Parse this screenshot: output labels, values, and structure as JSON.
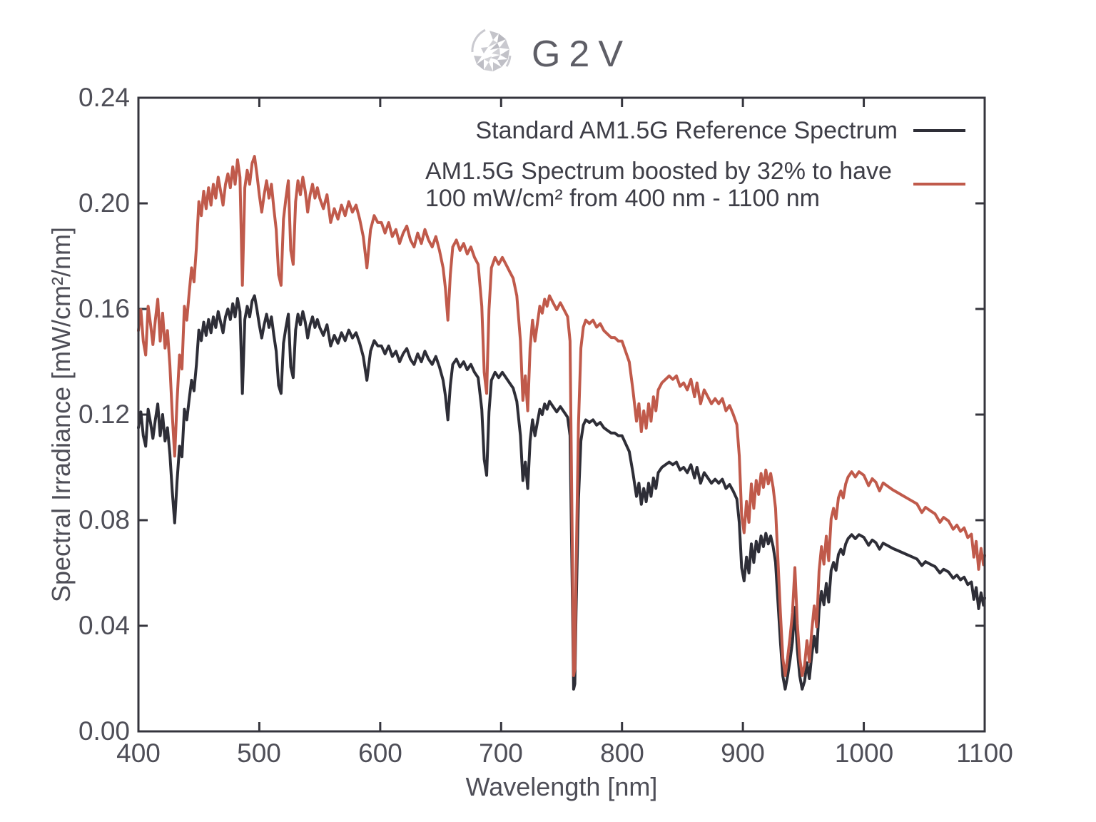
{
  "logo": {
    "text": "G2V"
  },
  "colors": {
    "reference_curve": "#2e2e37",
    "boosted_curve": "#c05a4b",
    "axis": "#35353d",
    "tick_label": "#4e4e57",
    "legend_text": "#3e3e47",
    "logo_text": "#5e5e66",
    "logo_icon": "#c4c4ca",
    "background": "#ffffff"
  },
  "legend": {
    "entries": [
      {
        "label": "Standard AM1.5G Reference Spectrum"
      },
      {
        "label_line1": "AM1.5G Spectrum boosted by 32% to have",
        "label_line2": "100 mW/cm² from 400 nm - 1100 nm"
      }
    ]
  },
  "chart_data": {
    "type": "line",
    "title": "",
    "xlabel": "Wavelength [nm]",
    "ylabel": "Spectral Irradiance [mW/cm²/nm]",
    "xlim": [
      400,
      1100
    ],
    "ylim": [
      0,
      0.24
    ],
    "x_ticks": [
      400,
      500,
      600,
      700,
      800,
      900,
      1000,
      1100
    ],
    "x_tick_labels": [
      "400",
      "500",
      "600",
      "700",
      "800",
      "900",
      "1000",
      "1100"
    ],
    "y_ticks": [
      0.24,
      0.2,
      0.16,
      0.12,
      0.08,
      0.04,
      0.0
    ],
    "y_tick_labels": [
      "0.24",
      "0.20",
      "0.16",
      "0.12",
      "0.08",
      "0.04",
      "0.00"
    ],
    "grid": false,
    "legend_position": "upper right",
    "series": [
      {
        "name": "Standard AM1.5G Reference Spectrum",
        "color": "#2e2e37",
        "source": "points"
      },
      {
        "name": "AM1.5G Spectrum boosted by 32% to have 100 mW/cm² from 400 nm - 1100 nm",
        "color": "#c05a4b",
        "scale": 1.32,
        "derived_from": "reference series multiplied by 1.32"
      }
    ],
    "points": [
      [
        400,
        0.115
      ],
      [
        402,
        0.121
      ],
      [
        404,
        0.112
      ],
      [
        406,
        0.108
      ],
      [
        408,
        0.122
      ],
      [
        410,
        0.117
      ],
      [
        412,
        0.111
      ],
      [
        414,
        0.118
      ],
      [
        416,
        0.124
      ],
      [
        418,
        0.112
      ],
      [
        420,
        0.12
      ],
      [
        422,
        0.11
      ],
      [
        424,
        0.115
      ],
      [
        426,
        0.105
      ],
      [
        428,
        0.091
      ],
      [
        430,
        0.079
      ],
      [
        432,
        0.095
      ],
      [
        434,
        0.108
      ],
      [
        436,
        0.104
      ],
      [
        438,
        0.122
      ],
      [
        440,
        0.118
      ],
      [
        442,
        0.126
      ],
      [
        444,
        0.133
      ],
      [
        446,
        0.129
      ],
      [
        448,
        0.139
      ],
      [
        450,
        0.152
      ],
      [
        452,
        0.148
      ],
      [
        454,
        0.155
      ],
      [
        456,
        0.15
      ],
      [
        458,
        0.156
      ],
      [
        460,
        0.151
      ],
      [
        462,
        0.157
      ],
      [
        464,
        0.153
      ],
      [
        466,
        0.159
      ],
      [
        468,
        0.155
      ],
      [
        470,
        0.151
      ],
      [
        472,
        0.157
      ],
      [
        474,
        0.16
      ],
      [
        476,
        0.156
      ],
      [
        478,
        0.162
      ],
      [
        480,
        0.157
      ],
      [
        482,
        0.164
      ],
      [
        484,
        0.159
      ],
      [
        486,
        0.128
      ],
      [
        488,
        0.156
      ],
      [
        490,
        0.161
      ],
      [
        492,
        0.157
      ],
      [
        494,
        0.163
      ],
      [
        496,
        0.165
      ],
      [
        498,
        0.16
      ],
      [
        500,
        0.154
      ],
      [
        502,
        0.149
      ],
      [
        504,
        0.154
      ],
      [
        506,
        0.158
      ],
      [
        508,
        0.153
      ],
      [
        510,
        0.157
      ],
      [
        512,
        0.15
      ],
      [
        514,
        0.144
      ],
      [
        516,
        0.131
      ],
      [
        518,
        0.128
      ],
      [
        520,
        0.147
      ],
      [
        522,
        0.153
      ],
      [
        524,
        0.158
      ],
      [
        526,
        0.138
      ],
      [
        528,
        0.134
      ],
      [
        530,
        0.152
      ],
      [
        532,
        0.158
      ],
      [
        534,
        0.154
      ],
      [
        536,
        0.159
      ],
      [
        538,
        0.155
      ],
      [
        540,
        0.149
      ],
      [
        542,
        0.154
      ],
      [
        544,
        0.157
      ],
      [
        546,
        0.153
      ],
      [
        548,
        0.156
      ],
      [
        550,
        0.153
      ],
      [
        553,
        0.15
      ],
      [
        556,
        0.154
      ],
      [
        559,
        0.146
      ],
      [
        562,
        0.15
      ],
      [
        565,
        0.147
      ],
      [
        568,
        0.151
      ],
      [
        571,
        0.148
      ],
      [
        574,
        0.152
      ],
      [
        577,
        0.149
      ],
      [
        580,
        0.151
      ],
      [
        583,
        0.147
      ],
      [
        586,
        0.142
      ],
      [
        589,
        0.133
      ],
      [
        592,
        0.144
      ],
      [
        595,
        0.148
      ],
      [
        598,
        0.146
      ],
      [
        601,
        0.146
      ],
      [
        604,
        0.143
      ],
      [
        607,
        0.146
      ],
      [
        610,
        0.142
      ],
      [
        613,
        0.144
      ],
      [
        616,
        0.14
      ],
      [
        619,
        0.143
      ],
      [
        622,
        0.145
      ],
      [
        625,
        0.141
      ],
      [
        628,
        0.139
      ],
      [
        631,
        0.143
      ],
      [
        634,
        0.14
      ],
      [
        637,
        0.144
      ],
      [
        640,
        0.141
      ],
      [
        643,
        0.139
      ],
      [
        646,
        0.142
      ],
      [
        649,
        0.138
      ],
      [
        652,
        0.133
      ],
      [
        654,
        0.127
      ],
      [
        656,
        0.118
      ],
      [
        658,
        0.131
      ],
      [
        660,
        0.139
      ],
      [
        663,
        0.141
      ],
      [
        666,
        0.138
      ],
      [
        669,
        0.14
      ],
      [
        672,
        0.137
      ],
      [
        675,
        0.139
      ],
      [
        678,
        0.136
      ],
      [
        681,
        0.134
      ],
      [
        684,
        0.122
      ],
      [
        686,
        0.103
      ],
      [
        688,
        0.097
      ],
      [
        690,
        0.121
      ],
      [
        692,
        0.133
      ],
      [
        695,
        0.136
      ],
      [
        698,
        0.134
      ],
      [
        701,
        0.136
      ],
      [
        704,
        0.134
      ],
      [
        707,
        0.132
      ],
      [
        710,
        0.13
      ],
      [
        713,
        0.125
      ],
      [
        716,
        0.112
      ],
      [
        718,
        0.095
      ],
      [
        720,
        0.102
      ],
      [
        722,
        0.092
      ],
      [
        724,
        0.11
      ],
      [
        726,
        0.118
      ],
      [
        728,
        0.112
      ],
      [
        730,
        0.117
      ],
      [
        732,
        0.122
      ],
      [
        734,
        0.12
      ],
      [
        736,
        0.124
      ],
      [
        738,
        0.122
      ],
      [
        740,
        0.125
      ],
      [
        743,
        0.123
      ],
      [
        746,
        0.121
      ],
      [
        749,
        0.123
      ],
      [
        752,
        0.121
      ],
      [
        755,
        0.119
      ],
      [
        757,
        0.112
      ],
      [
        759,
        0.05
      ],
      [
        760,
        0.016
      ],
      [
        761,
        0.018
      ],
      [
        762,
        0.045
      ],
      [
        764,
        0.088
      ],
      [
        766,
        0.11
      ],
      [
        768,
        0.116
      ],
      [
        770,
        0.118
      ],
      [
        773,
        0.117
      ],
      [
        776,
        0.118
      ],
      [
        779,
        0.116
      ],
      [
        782,
        0.117
      ],
      [
        785,
        0.115
      ],
      [
        788,
        0.114
      ],
      [
        791,
        0.113
      ],
      [
        794,
        0.113
      ],
      [
        797,
        0.112
      ],
      [
        800,
        0.112
      ],
      [
        803,
        0.109
      ],
      [
        806,
        0.106
      ],
      [
        809,
        0.098
      ],
      [
        812,
        0.089
      ],
      [
        814,
        0.094
      ],
      [
        816,
        0.086
      ],
      [
        818,
        0.092
      ],
      [
        820,
        0.087
      ],
      [
        822,
        0.094
      ],
      [
        824,
        0.089
      ],
      [
        826,
        0.096
      ],
      [
        828,
        0.092
      ],
      [
        830,
        0.098
      ],
      [
        833,
        0.1
      ],
      [
        836,
        0.101
      ],
      [
        839,
        0.102
      ],
      [
        842,
        0.101
      ],
      [
        845,
        0.102
      ],
      [
        848,
        0.099
      ],
      [
        851,
        0.1
      ],
      [
        854,
        0.098
      ],
      [
        857,
        0.101
      ],
      [
        860,
        0.096
      ],
      [
        862,
        0.1
      ],
      [
        865,
        0.094
      ],
      [
        868,
        0.098
      ],
      [
        871,
        0.096
      ],
      [
        874,
        0.094
      ],
      [
        877,
        0.0955
      ],
      [
        880,
        0.094
      ],
      [
        883,
        0.0955
      ],
      [
        886,
        0.092
      ],
      [
        889,
        0.0935
      ],
      [
        892,
        0.091
      ],
      [
        895,
        0.088
      ],
      [
        897,
        0.079
      ],
      [
        899,
        0.062
      ],
      [
        901,
        0.057
      ],
      [
        903,
        0.066
      ],
      [
        905,
        0.06
      ],
      [
        907,
        0.071
      ],
      [
        909,
        0.064
      ],
      [
        911,
        0.072
      ],
      [
        913,
        0.068
      ],
      [
        915,
        0.074
      ],
      [
        917,
        0.07
      ],
      [
        919,
        0.075
      ],
      [
        921,
        0.071
      ],
      [
        923,
        0.074
      ],
      [
        925,
        0.07
      ],
      [
        927,
        0.064
      ],
      [
        929,
        0.049
      ],
      [
        931,
        0.034
      ],
      [
        933,
        0.021
      ],
      [
        935,
        0.016
      ],
      [
        937,
        0.021
      ],
      [
        939,
        0.027
      ],
      [
        941,
        0.034
      ],
      [
        943,
        0.047
      ],
      [
        945,
        0.031
      ],
      [
        947,
        0.021
      ],
      [
        949,
        0.016
      ],
      [
        951,
        0.019
      ],
      [
        953,
        0.026
      ],
      [
        955,
        0.02
      ],
      [
        957,
        0.029
      ],
      [
        959,
        0.036
      ],
      [
        961,
        0.03
      ],
      [
        963,
        0.046
      ],
      [
        965,
        0.053
      ],
      [
        967,
        0.048
      ],
      [
        969,
        0.056
      ],
      [
        971,
        0.049
      ],
      [
        973,
        0.061
      ],
      [
        975,
        0.064
      ],
      [
        977,
        0.061
      ],
      [
        979,
        0.067
      ],
      [
        981,
        0.069
      ],
      [
        983,
        0.067
      ],
      [
        985,
        0.071
      ],
      [
        987,
        0.073
      ],
      [
        990,
        0.0745
      ],
      [
        993,
        0.073
      ],
      [
        996,
        0.0745
      ],
      [
        1000,
        0.0735
      ],
      [
        1004,
        0.0705
      ],
      [
        1007,
        0.0725
      ],
      [
        1010,
        0.0715
      ],
      [
        1013,
        0.069
      ],
      [
        1016,
        0.0713
      ],
      [
        1020,
        0.0703
      ],
      [
        1024,
        0.0693
      ],
      [
        1028,
        0.0685
      ],
      [
        1032,
        0.0677
      ],
      [
        1036,
        0.0669
      ],
      [
        1040,
        0.0661
      ],
      [
        1044,
        0.0653
      ],
      [
        1048,
        0.0628
      ],
      [
        1051,
        0.0643
      ],
      [
        1055,
        0.0633
      ],
      [
        1059,
        0.0624
      ],
      [
        1063,
        0.06
      ],
      [
        1066,
        0.0614
      ],
      [
        1070,
        0.0604
      ],
      [
        1074,
        0.058
      ],
      [
        1077,
        0.0592
      ],
      [
        1080,
        0.0574
      ],
      [
        1083,
        0.0584
      ],
      [
        1086,
        0.0556
      ],
      [
        1089,
        0.0566
      ],
      [
        1091,
        0.05
      ],
      [
        1093,
        0.0545
      ],
      [
        1095,
        0.0465
      ],
      [
        1097,
        0.0525
      ],
      [
        1099,
        0.0478
      ],
      [
        1100,
        0.0505
      ]
    ]
  }
}
